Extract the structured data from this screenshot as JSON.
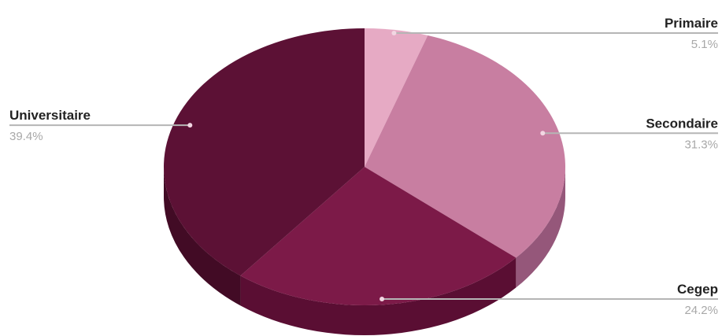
{
  "chart_data": {
    "type": "pie",
    "style": "3d",
    "legend": "none",
    "slices": [
      {
        "label": "Primaire",
        "value": 5.1,
        "value_label": "5.1%",
        "color": "#e6aac4",
        "side_color": "#b98098"
      },
      {
        "label": "Secondaire",
        "value": 31.3,
        "value_label": "31.3%",
        "color": "#c87ea1",
        "side_color": "#95577a"
      },
      {
        "label": "Cegep",
        "value": 24.2,
        "value_label": "24.2%",
        "color": "#7c1a48",
        "side_color": "#5a0e33"
      },
      {
        "label": "Universitaire",
        "value": 39.4,
        "value_label": "39.4%",
        "color": "#5c1135",
        "side_color": "#420b25"
      }
    ]
  }
}
